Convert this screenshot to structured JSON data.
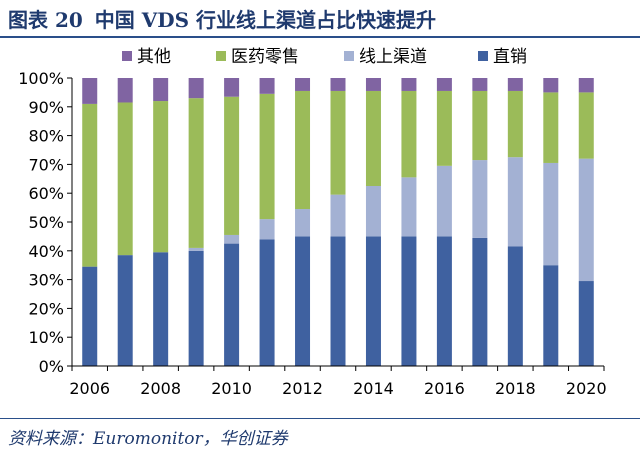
{
  "figure": {
    "number": "图表 20",
    "title": "中国 VDS 行业线上渠道占比快速提升",
    "source": "资料来源：Euromonitor，华创证券"
  },
  "chart_data": {
    "type": "bar",
    "stacked": true,
    "percent": true,
    "categories": [
      "2006",
      "2007",
      "2008",
      "2009",
      "2010",
      "2011",
      "2012",
      "2013",
      "2014",
      "2015",
      "2016",
      "2017",
      "2018",
      "2019",
      "2020"
    ],
    "x_tick_labels": [
      "2006",
      "2008",
      "2010",
      "2012",
      "2014",
      "2016",
      "2018",
      "2020"
    ],
    "ylim": [
      0,
      100
    ],
    "y_ticks": [
      "0%",
      "10%",
      "20%",
      "30%",
      "40%",
      "50%",
      "60%",
      "70%",
      "80%",
      "90%",
      "100%"
    ],
    "legend_position": "top",
    "grid": false,
    "legend_order": [
      "其他",
      "医药零售",
      "线上渠道",
      "直销"
    ],
    "series": [
      {
        "name": "直销",
        "color": "#3f61a0",
        "values": [
          34.5,
          38.5,
          39.5,
          40,
          42.5,
          44,
          45,
          45,
          45,
          45,
          45,
          44.5,
          41.5,
          35,
          29.5
        ]
      },
      {
        "name": "线上渠道",
        "color": "#a3b1d3",
        "values": [
          0,
          0,
          0,
          1,
          3,
          7,
          9.5,
          14.5,
          17.5,
          20.5,
          24.5,
          27,
          31,
          35.5,
          42.5
        ]
      },
      {
        "name": "医药零售",
        "color": "#9bbb59",
        "values": [
          56.5,
          53,
          52.5,
          52,
          48,
          43.5,
          41,
          36,
          33,
          30,
          26,
          24,
          23,
          24.5,
          23
        ]
      },
      {
        "name": "其他",
        "color": "#8064a2",
        "values": [
          9,
          8.5,
          8,
          7,
          6.5,
          5.5,
          4.5,
          4.5,
          4.5,
          4.5,
          4.5,
          4.5,
          4.5,
          5,
          5
        ]
      }
    ]
  }
}
